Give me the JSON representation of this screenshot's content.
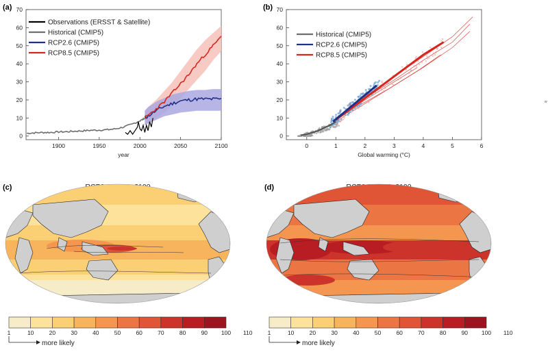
{
  "colors": {
    "observations": "#000000",
    "historical": "#6e6e6e",
    "rcp26": "#1f2f8a",
    "rcp26_band": "#a9a8e0",
    "rcp85": "#d7261e",
    "rcp85_band": "#f6c2b8",
    "scatter_hist": "#9a9a9a",
    "scatter_rcp26": "#6aa6d8",
    "scatter_rcp85": "#e58a86",
    "land": "#cfcfcf",
    "colorbar": [
      "#f6ecc7",
      "#fce29b",
      "#fbcf74",
      "#f8b45d",
      "#f59650",
      "#ec7643",
      "#df5536",
      "#cc342b",
      "#b81d24",
      "#9b1420"
    ]
  },
  "stray_mark": "w",
  "chart_data": [
    {
      "type": "line",
      "panel": "(a)",
      "xlabel": "year",
      "ylabel": "",
      "xlim": [
        1860,
        2100
      ],
      "ylim": [
        -2,
        70
      ],
      "xticks": [
        1900,
        1950,
        2000,
        2050,
        2100
      ],
      "yticks": [
        0,
        10,
        20,
        30,
        40,
        50,
        60,
        70
      ],
      "legend_position": "top-left",
      "series": [
        {
          "name": "Observations (ERSST & Satellite)",
          "x": [
            1982,
            1985,
            1988,
            1991,
            1994,
            1997,
            1998,
            2000,
            2002,
            2004,
            2006,
            2008,
            2010,
            2012,
            2014,
            2016
          ],
          "y": [
            2,
            1,
            3,
            1,
            3,
            5,
            8,
            4,
            3,
            6,
            2,
            6,
            3,
            8,
            5,
            10
          ]
        },
        {
          "name": "Historical (CMIP5)",
          "x": [
            1861,
            1870,
            1880,
            1890,
            1900,
            1910,
            1920,
            1930,
            1940,
            1950,
            1960,
            1970,
            1980,
            1990,
            2000,
            2005
          ],
          "y": [
            1.5,
            1.8,
            2.0,
            2.0,
            2.3,
            2.4,
            2.7,
            2.9,
            3.2,
            3.3,
            3.5,
            4.0,
            5.0,
            6.5,
            8.5,
            9.5
          ]
        },
        {
          "name": "RCP2.6 (CMIP5)",
          "x": [
            2006,
            2010,
            2020,
            2030,
            2040,
            2050,
            2060,
            2070,
            2080,
            2090,
            2100
          ],
          "y": [
            10,
            11,
            14,
            16.5,
            18,
            19.5,
            20,
            20.5,
            20.5,
            20.5,
            20.5
          ],
          "lower": [
            6,
            7,
            9,
            11,
            12,
            13,
            13.5,
            14,
            14,
            14,
            14
          ],
          "upper": [
            14,
            16,
            19,
            21,
            23,
            24,
            25,
            25.5,
            25.5,
            26,
            26
          ]
        },
        {
          "name": "RCP8.5 (CMIP5)",
          "x": [
            2006,
            2010,
            2020,
            2030,
            2040,
            2050,
            2060,
            2070,
            2080,
            2090,
            2100
          ],
          "y": [
            10,
            11.5,
            15,
            19,
            24,
            29,
            34,
            40,
            45,
            50,
            55
          ],
          "lower": [
            6,
            7,
            10,
            13,
            17,
            21,
            26,
            31,
            36,
            42,
            47
          ],
          "upper": [
            14,
            16,
            20,
            25,
            30,
            36,
            42,
            48,
            53,
            57,
            61
          ]
        }
      ]
    },
    {
      "type": "scatter",
      "panel": "(b)",
      "xlabel": "Global warming (°C)",
      "ylabel": "",
      "xlim": [
        -0.7,
        6
      ],
      "ylim": [
        -2,
        70
      ],
      "xticks": [
        0,
        1,
        2,
        3,
        4,
        5,
        6
      ],
      "yticks": [
        0,
        10,
        20,
        30,
        40,
        50,
        60,
        70
      ],
      "legend_position": "top-left",
      "series": [
        {
          "name": "Historical (CMIP5)",
          "x": [
            -0.2,
            0,
            0.2,
            0.4,
            0.6,
            0.8,
            1.0
          ],
          "y": [
            0.5,
            1,
            2,
            3,
            4.5,
            6,
            8
          ]
        },
        {
          "name": "RCP2.6 (CMIP5)",
          "x": [
            0.9,
            1.2,
            1.5,
            1.8,
            2.1,
            2.4
          ],
          "y": [
            8,
            12,
            16,
            20,
            24,
            28
          ]
        },
        {
          "name": "RCP8.5 (CMIP5)",
          "x": [
            1.0,
            1.5,
            2.0,
            2.5,
            3.0,
            3.5,
            4.0,
            4.5,
            4.7
          ],
          "y": [
            9,
            15,
            21,
            27,
            33,
            39,
            45,
            50,
            52
          ],
          "members": [
            {
              "x": [
                1.0,
                2.0,
                3.0,
                4.0,
                5.0,
                5.7
              ],
              "y": [
                10,
                22,
                33,
                44,
                55,
                66
              ]
            },
            {
              "x": [
                1.0,
                2.0,
                3.0,
                4.0,
                5.0,
                5.6
              ],
              "y": [
                9,
                21,
                31,
                42,
                52,
                62
              ]
            },
            {
              "x": [
                1.0,
                2.0,
                3.0,
                4.0,
                5.0,
                5.6
              ],
              "y": [
                8,
                18,
                28,
                38,
                49,
                58
              ]
            },
            {
              "x": [
                0.9,
                1.8,
                2.8,
                3.8,
                4.6
              ],
              "y": [
                8,
                17,
                26,
                36,
                45
              ]
            },
            {
              "x": [
                1.0,
                2.0,
                3.0,
                3.8
              ],
              "y": [
                9,
                20,
                30,
                38
              ]
            }
          ]
        }
      ]
    },
    {
      "type": "heatmap",
      "panel": "(c)",
      "title": "RCP2.6: 2081–2100",
      "colorbar_ticks": [
        1,
        10,
        20,
        30,
        40,
        50,
        60,
        70,
        80,
        90,
        100,
        110
      ],
      "colorbar_caption": "more likely",
      "level": "low"
    },
    {
      "type": "heatmap",
      "panel": "(d)",
      "title": "RCP8.5: 2081–2100",
      "colorbar_ticks": [
        1,
        10,
        20,
        30,
        40,
        50,
        60,
        70,
        80,
        90,
        100,
        110
      ],
      "colorbar_caption": "more likely",
      "level": "high"
    }
  ]
}
